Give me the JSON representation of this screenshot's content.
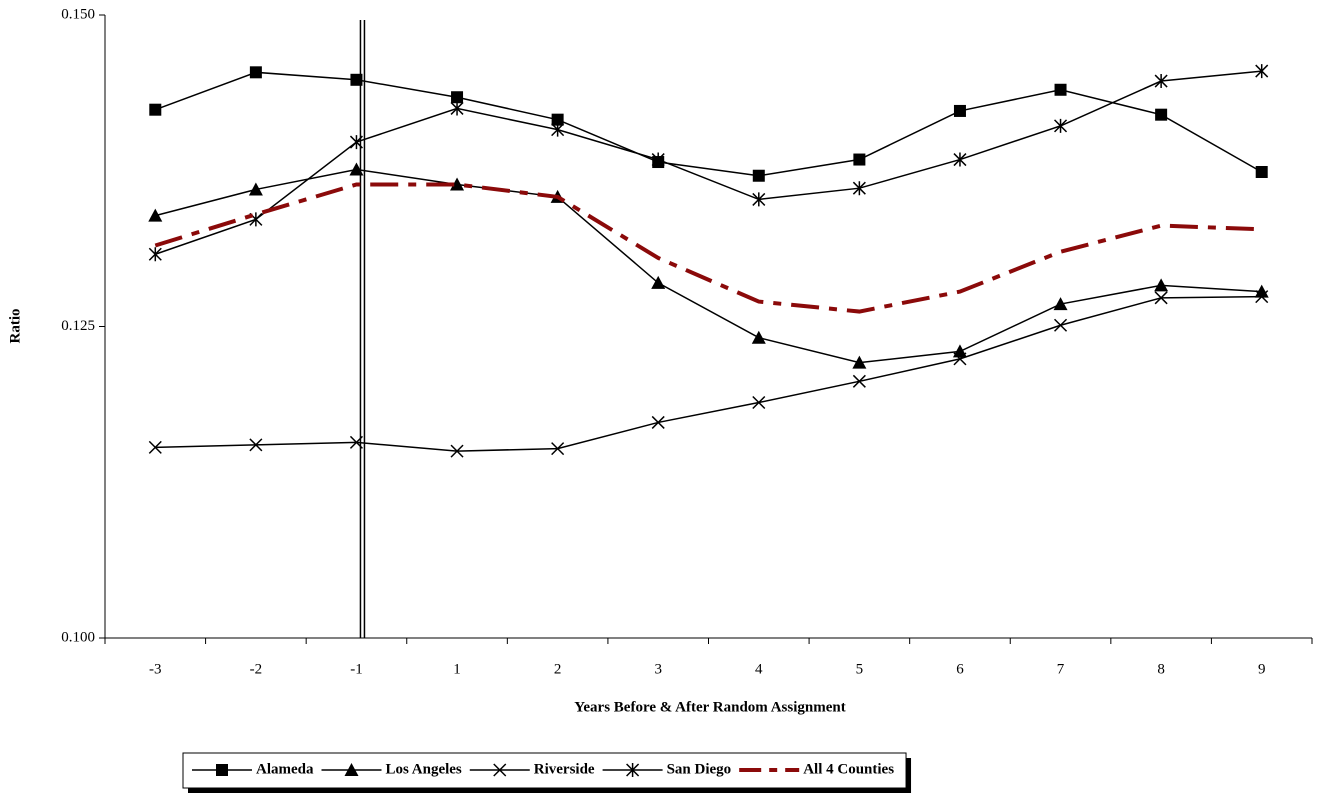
{
  "chart_data": {
    "type": "line",
    "y_label": "Ratio",
    "x_label": "Years Before & After Random Assignment",
    "categories": [
      "-3",
      "-2",
      "-1",
      "1",
      "2",
      "3",
      "4",
      "5",
      "6",
      "7",
      "8",
      "9"
    ],
    "ylim": [
      0.1,
      0.15
    ],
    "yticks": [
      {
        "value": 0.1,
        "label": "0.100"
      },
      {
        "value": 0.125,
        "label": "0.125"
      },
      {
        "value": 0.15,
        "label": "0.150"
      }
    ],
    "series": [
      {
        "name": "Alameda",
        "color": "#000000",
        "marker": "square",
        "values": [
          0.1424,
          0.1454,
          0.1448,
          0.1434,
          0.1416,
          0.1382,
          0.1371,
          0.1384,
          0.1423,
          0.144,
          0.142,
          0.1374
        ]
      },
      {
        "name": "Los Angeles",
        "color": "#000000",
        "marker": "triangle",
        "values": [
          0.1339,
          0.136,
          0.1376,
          0.1364,
          0.1354,
          0.1285,
          0.1241,
          0.1221,
          0.123,
          0.1268,
          0.1283,
          0.1278
        ]
      },
      {
        "name": "Riverside",
        "color": "#000000",
        "marker": "x",
        "values": [
          0.1153,
          0.1155,
          0.1157,
          0.115,
          0.1152,
          0.1173,
          0.1189,
          0.1206,
          0.1224,
          0.1251,
          0.1273,
          0.1274
        ]
      },
      {
        "name": "San Diego",
        "color": "#000000",
        "marker": "asterisk",
        "values": [
          0.1308,
          0.1336,
          0.1398,
          0.1425,
          0.1408,
          0.1384,
          0.1352,
          0.1361,
          0.1384,
          0.1411,
          0.1447,
          0.1455
        ]
      },
      {
        "name": "All 4 Counties",
        "color": "#8b0a0a",
        "marker": "none",
        "dash": true,
        "values": [
          0.1315,
          0.134,
          0.1364,
          0.1364,
          0.1354,
          0.1305,
          0.127,
          0.1262,
          0.1278,
          0.131,
          0.1331,
          0.1328
        ]
      }
    ]
  }
}
